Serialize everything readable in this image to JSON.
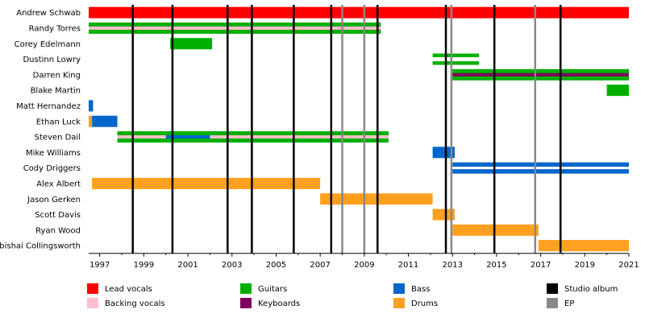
{
  "chart_data": {
    "type": "timeline",
    "title": "",
    "x_range": [
      1996.5,
      2021.0
    ],
    "x_ticks": [
      "1997",
      "1999",
      "2001",
      "2003",
      "2005",
      "2007",
      "2009",
      "2011",
      "2013",
      "2015",
      "2017",
      "2019",
      "2021"
    ],
    "x_tick_values": [
      1997,
      1999,
      2001,
      2003,
      2005,
      2007,
      2009,
      2011,
      2013,
      2015,
      2017,
      2019,
      2021
    ],
    "role_colors": {
      "lead_vocals": "#ff0000",
      "backing_vocals": "#ffc0cb",
      "guitars": "#00b000",
      "keyboards": "#800060",
      "bass": "#0066cc",
      "drums": "#ffa020",
      "studio_album": "#000000",
      "ep": "#888888"
    },
    "members": [
      {
        "name": "Andrew Schwab",
        "spans": [
          {
            "role": "lead_vocals",
            "start": 1996.5,
            "end": 2021.0
          }
        ]
      },
      {
        "name": "Randy Torres",
        "spans": [
          {
            "role": "guitars",
            "start": 1996.5,
            "end": 2009.75
          },
          {
            "role": "keyboards",
            "start": 1996.5,
            "end": 2009.75
          },
          {
            "role": "backing_vocals",
            "start": 1996.5,
            "end": 2009.75
          }
        ]
      },
      {
        "name": "Corey Edelmann",
        "spans": [
          {
            "role": "guitars",
            "start": 2000.2,
            "end": 2002.1
          }
        ]
      },
      {
        "name": "Dustinn Lowry",
        "spans": [
          {
            "role": "guitars",
            "start": 2012.1,
            "end": 2014.2
          },
          {
            "role": "guitars_outline",
            "start": 2012.1,
            "end": 2014.2
          }
        ]
      },
      {
        "name": "Darren King",
        "spans": [
          {
            "role": "guitars",
            "start": 2013.0,
            "end": 2021.0
          },
          {
            "role": "keyboards",
            "start": 2013.0,
            "end": 2021.0
          }
        ]
      },
      {
        "name": "Blake Martin",
        "spans": [
          {
            "role": "guitars",
            "start": 2020.0,
            "end": 2021.0
          }
        ]
      },
      {
        "name": "Matt Hernandez",
        "spans": [
          {
            "role": "bass",
            "start": 1996.5,
            "end": 1996.7
          }
        ]
      },
      {
        "name": "Ethan Luck",
        "spans": [
          {
            "role": "bass",
            "start": 1996.65,
            "end": 1997.8
          },
          {
            "role": "drums",
            "start": 1996.5,
            "end": 1996.65
          }
        ]
      },
      {
        "name": "Steven Dail",
        "spans": [
          {
            "role": "guitars",
            "start": 1997.8,
            "end": 2010.1
          },
          {
            "role": "backing_vocals",
            "start": 1997.8,
            "end": 2010.1
          },
          {
            "role": "bass",
            "start": 2000.0,
            "end": 2002.0
          }
        ]
      },
      {
        "name": "Mike Williams",
        "spans": [
          {
            "role": "bass",
            "start": 2012.1,
            "end": 2013.1
          }
        ]
      },
      {
        "name": "Cody Driggers",
        "spans": [
          {
            "role": "bass",
            "start": 2013.0,
            "end": 2021.0
          },
          {
            "role": "backing_vocals",
            "start": 2013.0,
            "end": 2021.0
          }
        ]
      },
      {
        "name": "Alex Albert",
        "spans": [
          {
            "role": "drums",
            "start": 1996.65,
            "end": 2007.0
          }
        ]
      },
      {
        "name": "Jason Gerken",
        "spans": [
          {
            "role": "drums",
            "start": 2007.0,
            "end": 2012.1
          }
        ]
      },
      {
        "name": "Scott Davis",
        "spans": [
          {
            "role": "drums",
            "start": 2012.1,
            "end": 2013.1
          }
        ]
      },
      {
        "name": "Ryan Wood",
        "spans": [
          {
            "role": "drums",
            "start": 2013.0,
            "end": 2016.9
          }
        ]
      },
      {
        "name": "Abishai Collingsworth",
        "spans": [
          {
            "role": "drums",
            "start": 2016.9,
            "end": 2021.0
          }
        ]
      }
    ],
    "studio_albums": [
      1998.5,
      2000.3,
      2002.8,
      2003.9,
      2005.8,
      2007.5,
      2009.6,
      2012.7,
      2014.9,
      2017.9
    ],
    "eps": [
      2008.0,
      2009.0,
      2012.95,
      2016.75
    ],
    "legend": [
      {
        "key": "lead_vocals",
        "label": "Lead vocals"
      },
      {
        "key": "backing_vocals",
        "label": "Backing vocals"
      },
      {
        "key": "guitars",
        "label": "Guitars"
      },
      {
        "key": "keyboards",
        "label": "Keyboards"
      },
      {
        "key": "bass",
        "label": "Bass"
      },
      {
        "key": "drums",
        "label": "Drums"
      },
      {
        "key": "studio_album",
        "label": "Studio album"
      },
      {
        "key": "ep",
        "label": "EP"
      }
    ]
  }
}
